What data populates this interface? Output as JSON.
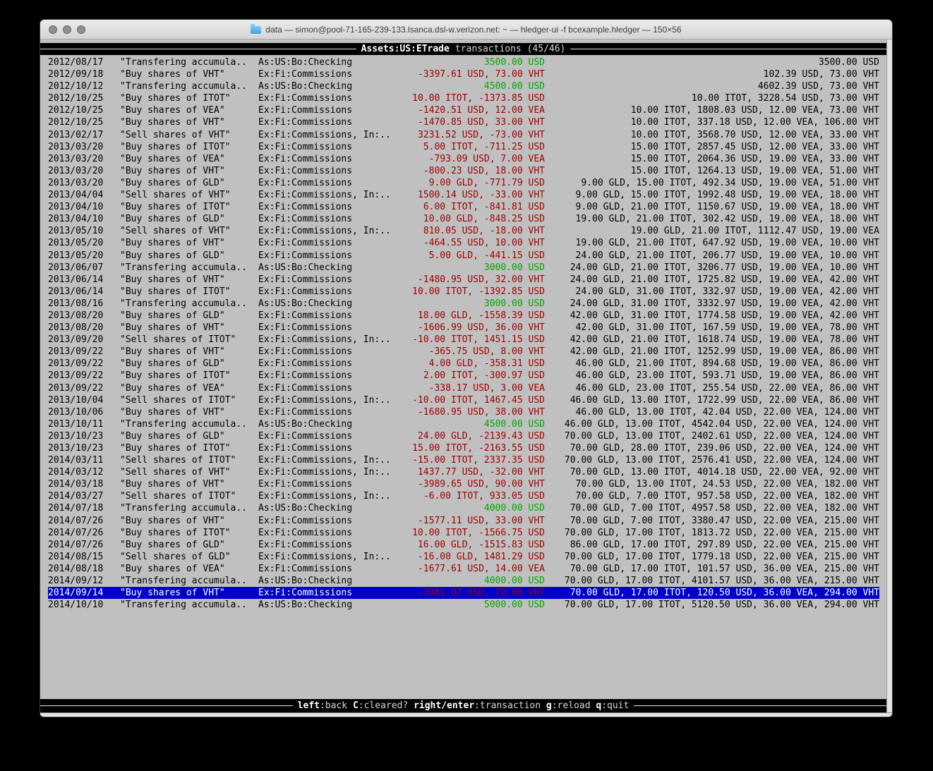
{
  "window": {
    "title": "data — simon@pool-71-165-239-133.lsanca.dsl-w.verizon.net: ~ — hledger-ui -f bcexample.hledger — 150×56"
  },
  "header": {
    "account": "Assets:US:ETrade",
    "suffix": "transactions (45/46)"
  },
  "footer": {
    "hints": [
      {
        "key": "left",
        "desc": ":back"
      },
      {
        "key": "C",
        "desc": ":cleared?"
      },
      {
        "key": "right/enter",
        "desc": ":transaction"
      },
      {
        "key": "g",
        "desc": ":reload"
      },
      {
        "key": "q",
        "desc": ":quit"
      }
    ]
  },
  "colors": {
    "green": "#00a800",
    "red": "#a00000",
    "selected_bg": "#0000cc",
    "terminal_bg": "#c0c0c0"
  },
  "transactions": {
    "selected_index": 44,
    "rows": [
      {
        "date": "2012/08/17",
        "description": "\"Transfering accumula..",
        "account": "As:US:Bo:Checking",
        "change": "3500.00 USD",
        "change_color": "green",
        "balance": "3500.00 USD"
      },
      {
        "date": "2012/09/18",
        "description": "\"Buy shares of VHT\"",
        "account": "Ex:Fi:Commissions",
        "change": "-3397.61 USD, 73.00 VHT",
        "change_color": "red",
        "balance": "102.39 USD, 73.00 VHT"
      },
      {
        "date": "2012/10/12",
        "description": "\"Transfering accumula..",
        "account": "As:US:Bo:Checking",
        "change": "4500.00 USD",
        "change_color": "green",
        "balance": "4602.39 USD, 73.00 VHT"
      },
      {
        "date": "2012/10/25",
        "description": "\"Buy shares of ITOT\"",
        "account": "Ex:Fi:Commissions",
        "change": "10.00 ITOT, -1373.85 USD",
        "change_color": "red",
        "balance": "10.00 ITOT, 3228.54 USD, 73.00 VHT"
      },
      {
        "date": "2012/10/25",
        "description": "\"Buy shares of VEA\"",
        "account": "Ex:Fi:Commissions",
        "change": "-1420.51 USD, 12.00 VEA",
        "change_color": "red",
        "balance": "10.00 ITOT, 1808.03 USD, 12.00 VEA, 73.00 VHT"
      },
      {
        "date": "2012/10/25",
        "description": "\"Buy shares of VHT\"",
        "account": "Ex:Fi:Commissions",
        "change": "-1470.85 USD, 33.00 VHT",
        "change_color": "red",
        "balance": "10.00 ITOT, 337.18 USD, 12.00 VEA, 106.00 VHT"
      },
      {
        "date": "2013/02/17",
        "description": "\"Sell shares of VHT\"",
        "account": "Ex:Fi:Commissions, In:..",
        "change": "3231.52 USD, -73.00 VHT",
        "change_color": "red",
        "balance": "10.00 ITOT, 3568.70 USD, 12.00 VEA, 33.00 VHT"
      },
      {
        "date": "2013/03/20",
        "description": "\"Buy shares of ITOT\"",
        "account": "Ex:Fi:Commissions",
        "change": "5.00 ITOT, -711.25 USD",
        "change_color": "red",
        "balance": "15.00 ITOT, 2857.45 USD, 12.00 VEA, 33.00 VHT"
      },
      {
        "date": "2013/03/20",
        "description": "\"Buy shares of VEA\"",
        "account": "Ex:Fi:Commissions",
        "change": "-793.09 USD, 7.00 VEA",
        "change_color": "red",
        "balance": "15.00 ITOT, 2064.36 USD, 19.00 VEA, 33.00 VHT"
      },
      {
        "date": "2013/03/20",
        "description": "\"Buy shares of VHT\"",
        "account": "Ex:Fi:Commissions",
        "change": "-800.23 USD, 18.00 VHT",
        "change_color": "red",
        "balance": "15.00 ITOT, 1264.13 USD, 19.00 VEA, 51.00 VHT"
      },
      {
        "date": "2013/03/20",
        "description": "\"Buy shares of GLD\"",
        "account": "Ex:Fi:Commissions",
        "change": "9.00 GLD, -771.79 USD",
        "change_color": "red",
        "balance": "9.00 GLD, 15.00 ITOT, 492.34 USD, 19.00 VEA, 51.00 VHT"
      },
      {
        "date": "2013/04/04",
        "description": "\"Sell shares of VHT\"",
        "account": "Ex:Fi:Commissions, In:..",
        "change": "1500.14 USD, -33.00 VHT",
        "change_color": "red",
        "balance": "9.00 GLD, 15.00 ITOT, 1992.48 USD, 19.00 VEA, 18.00 VHT"
      },
      {
        "date": "2013/04/10",
        "description": "\"Buy shares of ITOT\"",
        "account": "Ex:Fi:Commissions",
        "change": "6.00 ITOT, -841.81 USD",
        "change_color": "red",
        "balance": "9.00 GLD, 21.00 ITOT, 1150.67 USD, 19.00 VEA, 18.00 VHT"
      },
      {
        "date": "2013/04/10",
        "description": "\"Buy shares of GLD\"",
        "account": "Ex:Fi:Commissions",
        "change": "10.00 GLD, -848.25 USD",
        "change_color": "red",
        "balance": "19.00 GLD, 21.00 ITOT, 302.42 USD, 19.00 VEA, 18.00 VHT"
      },
      {
        "date": "2013/05/10",
        "description": "\"Sell shares of VHT\"",
        "account": "Ex:Fi:Commissions, In:..",
        "change": "810.05 USD, -18.00 VHT",
        "change_color": "red",
        "balance": "19.00 GLD, 21.00 ITOT, 1112.47 USD, 19.00 VEA"
      },
      {
        "date": "2013/05/20",
        "description": "\"Buy shares of VHT\"",
        "account": "Ex:Fi:Commissions",
        "change": "-464.55 USD, 10.00 VHT",
        "change_color": "red",
        "balance": "19.00 GLD, 21.00 ITOT, 647.92 USD, 19.00 VEA, 10.00 VHT"
      },
      {
        "date": "2013/05/20",
        "description": "\"Buy shares of GLD\"",
        "account": "Ex:Fi:Commissions",
        "change": "5.00 GLD, -441.15 USD",
        "change_color": "red",
        "balance": "24.00 GLD, 21.00 ITOT, 206.77 USD, 19.00 VEA, 10.00 VHT"
      },
      {
        "date": "2013/06/07",
        "description": "\"Transfering accumula..",
        "account": "As:US:Bo:Checking",
        "change": "3000.00 USD",
        "change_color": "green",
        "balance": "24.00 GLD, 21.00 ITOT, 3206.77 USD, 19.00 VEA, 10.00 VHT"
      },
      {
        "date": "2013/06/14",
        "description": "\"Buy shares of VHT\"",
        "account": "Ex:Fi:Commissions",
        "change": "-1480.95 USD, 32.00 VHT",
        "change_color": "red",
        "balance": "24.00 GLD, 21.00 ITOT, 1725.82 USD, 19.00 VEA, 42.00 VHT"
      },
      {
        "date": "2013/06/14",
        "description": "\"Buy shares of ITOT\"",
        "account": "Ex:Fi:Commissions",
        "change": "10.00 ITOT, -1392.85 USD",
        "change_color": "red",
        "balance": "24.00 GLD, 31.00 ITOT, 332.97 USD, 19.00 VEA, 42.00 VHT"
      },
      {
        "date": "2013/08/16",
        "description": "\"Transfering accumula..",
        "account": "As:US:Bo:Checking",
        "change": "3000.00 USD",
        "change_color": "green",
        "balance": "24.00 GLD, 31.00 ITOT, 3332.97 USD, 19.00 VEA, 42.00 VHT"
      },
      {
        "date": "2013/08/20",
        "description": "\"Buy shares of GLD\"",
        "account": "Ex:Fi:Commissions",
        "change": "18.00 GLD, -1558.39 USD",
        "change_color": "red",
        "balance": "42.00 GLD, 31.00 ITOT, 1774.58 USD, 19.00 VEA, 42.00 VHT"
      },
      {
        "date": "2013/08/20",
        "description": "\"Buy shares of VHT\"",
        "account": "Ex:Fi:Commissions",
        "change": "-1606.99 USD, 36.00 VHT",
        "change_color": "red",
        "balance": "42.00 GLD, 31.00 ITOT, 167.59 USD, 19.00 VEA, 78.00 VHT"
      },
      {
        "date": "2013/09/20",
        "description": "\"Sell shares of ITOT\"",
        "account": "Ex:Fi:Commissions, In:..",
        "change": "-10.00 ITOT, 1451.15 USD",
        "change_color": "red",
        "balance": "42.00 GLD, 21.00 ITOT, 1618.74 USD, 19.00 VEA, 78.00 VHT"
      },
      {
        "date": "2013/09/22",
        "description": "\"Buy shares of VHT\"",
        "account": "Ex:Fi:Commissions",
        "change": "-365.75 USD, 8.00 VHT",
        "change_color": "red",
        "balance": "42.00 GLD, 21.00 ITOT, 1252.99 USD, 19.00 VEA, 86.00 VHT"
      },
      {
        "date": "2013/09/22",
        "description": "\"Buy shares of GLD\"",
        "account": "Ex:Fi:Commissions",
        "change": "4.00 GLD, -358.31 USD",
        "change_color": "red",
        "balance": "46.00 GLD, 21.00 ITOT, 894.68 USD, 19.00 VEA, 86.00 VHT"
      },
      {
        "date": "2013/09/22",
        "description": "\"Buy shares of ITOT\"",
        "account": "Ex:Fi:Commissions",
        "change": "2.00 ITOT, -300.97 USD",
        "change_color": "red",
        "balance": "46.00 GLD, 23.00 ITOT, 593.71 USD, 19.00 VEA, 86.00 VHT"
      },
      {
        "date": "2013/09/22",
        "description": "\"Buy shares of VEA\"",
        "account": "Ex:Fi:Commissions",
        "change": "-338.17 USD, 3.00 VEA",
        "change_color": "red",
        "balance": "46.00 GLD, 23.00 ITOT, 255.54 USD, 22.00 VEA, 86.00 VHT"
      },
      {
        "date": "2013/10/04",
        "description": "\"Sell shares of ITOT\"",
        "account": "Ex:Fi:Commissions, In:..",
        "change": "-10.00 ITOT, 1467.45 USD",
        "change_color": "red",
        "balance": "46.00 GLD, 13.00 ITOT, 1722.99 USD, 22.00 VEA, 86.00 VHT"
      },
      {
        "date": "2013/10/06",
        "description": "\"Buy shares of VHT\"",
        "account": "Ex:Fi:Commissions",
        "change": "-1680.95 USD, 38.00 VHT",
        "change_color": "red",
        "balance": "46.00 GLD, 13.00 ITOT, 42.04 USD, 22.00 VEA, 124.00 VHT"
      },
      {
        "date": "2013/10/11",
        "description": "\"Transfering accumula..",
        "account": "As:US:Bo:Checking",
        "change": "4500.00 USD",
        "change_color": "green",
        "balance": "46.00 GLD, 13.00 ITOT, 4542.04 USD, 22.00 VEA, 124.00 VHT"
      },
      {
        "date": "2013/10/23",
        "description": "\"Buy shares of GLD\"",
        "account": "Ex:Fi:Commissions",
        "change": "24.00 GLD, -2139.43 USD",
        "change_color": "red",
        "balance": "70.00 GLD, 13.00 ITOT, 2402.61 USD, 22.00 VEA, 124.00 VHT"
      },
      {
        "date": "2013/10/23",
        "description": "\"Buy shares of ITOT\"",
        "account": "Ex:Fi:Commissions",
        "change": "15.00 ITOT, -2163.55 USD",
        "change_color": "red",
        "balance": "70.00 GLD, 28.00 ITOT, 239.06 USD, 22.00 VEA, 124.00 VHT"
      },
      {
        "date": "2014/03/11",
        "description": "\"Sell shares of ITOT\"",
        "account": "Ex:Fi:Commissions, In:..",
        "change": "-15.00 ITOT, 2337.35 USD",
        "change_color": "red",
        "balance": "70.00 GLD, 13.00 ITOT, 2576.41 USD, 22.00 VEA, 124.00 VHT"
      },
      {
        "date": "2014/03/12",
        "description": "\"Sell shares of VHT\"",
        "account": "Ex:Fi:Commissions, In:..",
        "change": "1437.77 USD, -32.00 VHT",
        "change_color": "red",
        "balance": "70.00 GLD, 13.00 ITOT, 4014.18 USD, 22.00 VEA, 92.00 VHT"
      },
      {
        "date": "2014/03/18",
        "description": "\"Buy shares of VHT\"",
        "account": "Ex:Fi:Commissions",
        "change": "-3989.65 USD, 90.00 VHT",
        "change_color": "red",
        "balance": "70.00 GLD, 13.00 ITOT, 24.53 USD, 22.00 VEA, 182.00 VHT"
      },
      {
        "date": "2014/03/27",
        "description": "\"Sell shares of ITOT\"",
        "account": "Ex:Fi:Commissions, In:..",
        "change": "-6.00 ITOT, 933.05 USD",
        "change_color": "red",
        "balance": "70.00 GLD, 7.00 ITOT, 957.58 USD, 22.00 VEA, 182.00 VHT"
      },
      {
        "date": "2014/07/18",
        "description": "\"Transfering accumula..",
        "account": "As:US:Bo:Checking",
        "change": "4000.00 USD",
        "change_color": "green",
        "balance": "70.00 GLD, 7.00 ITOT, 4957.58 USD, 22.00 VEA, 182.00 VHT"
      },
      {
        "date": "2014/07/26",
        "description": "\"Buy shares of VHT\"",
        "account": "Ex:Fi:Commissions",
        "change": "-1577.11 USD, 33.00 VHT",
        "change_color": "red",
        "balance": "70.00 GLD, 7.00 ITOT, 3380.47 USD, 22.00 VEA, 215.00 VHT"
      },
      {
        "date": "2014/07/26",
        "description": "\"Buy shares of ITOT\"",
        "account": "Ex:Fi:Commissions",
        "change": "10.00 ITOT, -1566.75 USD",
        "change_color": "red",
        "balance": "70.00 GLD, 17.00 ITOT, 1813.72 USD, 22.00 VEA, 215.00 VHT"
      },
      {
        "date": "2014/07/26",
        "description": "\"Buy shares of GLD\"",
        "account": "Ex:Fi:Commissions",
        "change": "16.00 GLD, -1515.83 USD",
        "change_color": "red",
        "balance": "86.00 GLD, 17.00 ITOT, 297.89 USD, 22.00 VEA, 215.00 VHT"
      },
      {
        "date": "2014/08/15",
        "description": "\"Sell shares of GLD\"",
        "account": "Ex:Fi:Commissions, In:..",
        "change": "-16.00 GLD, 1481.29 USD",
        "change_color": "red",
        "balance": "70.00 GLD, 17.00 ITOT, 1779.18 USD, 22.00 VEA, 215.00 VHT"
      },
      {
        "date": "2014/08/18",
        "description": "\"Buy shares of VEA\"",
        "account": "Ex:Fi:Commissions",
        "change": "-1677.61 USD, 14.00 VEA",
        "change_color": "red",
        "balance": "70.00 GLD, 17.00 ITOT, 101.57 USD, 36.00 VEA, 215.00 VHT"
      },
      {
        "date": "2014/09/12",
        "description": "\"Transfering accumula..",
        "account": "As:US:Bo:Checking",
        "change": "4000.00 USD",
        "change_color": "green",
        "balance": "70.00 GLD, 17.00 ITOT, 4101.57 USD, 36.00 VEA, 215.00 VHT"
      },
      {
        "date": "2014/09/14",
        "description": "\"Buy shares of VHT\"",
        "account": "Ex:Fi:Commissions",
        "change": "-3981.07 USD, 79.00 VHT",
        "change_color": "red",
        "balance": "70.00 GLD, 17.00 ITOT, 120.50 USD, 36.00 VEA, 294.00 VHT"
      },
      {
        "date": "2014/10/10",
        "description": "\"Transfering accumula..",
        "account": "As:US:Bo:Checking",
        "change": "5000.00 USD",
        "change_color": "green",
        "balance": "70.00 GLD, 17.00 ITOT, 5120.50 USD, 36.00 VEA, 294.00 VHT"
      }
    ]
  }
}
